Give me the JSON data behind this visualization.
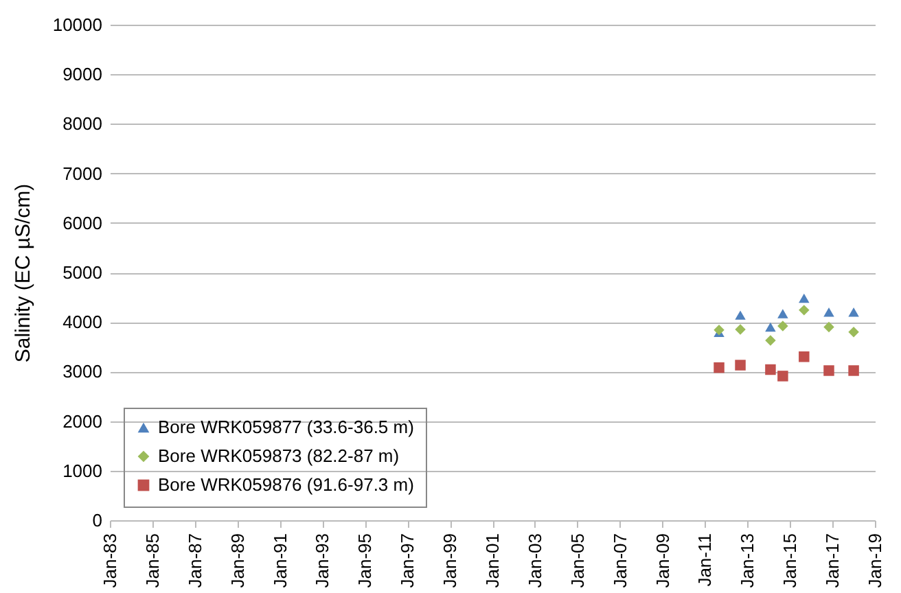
{
  "chart_data": {
    "type": "scatter",
    "ylabel": "Salinity (EC µS/cm)",
    "x": [
      "2011-09",
      "2012-09",
      "2014-02",
      "2014-09",
      "2015-09",
      "2016-11",
      "2018-01"
    ],
    "series": [
      {
        "name": "Bore WRK059877 (33.6-36.5 m)",
        "color": "#4f81bd",
        "marker": "triangle",
        "values": [
          3790,
          4140,
          3900,
          4170,
          4480,
          4200,
          4200
        ]
      },
      {
        "name": "Bore WRK059873 (82.2-87 m)",
        "color": "#9bbb59",
        "marker": "diamond",
        "values": [
          3840,
          3850,
          3630,
          3920,
          4240,
          3900,
          3800
        ]
      },
      {
        "name": "Bore WRK059876 (91.6-97.3 m)",
        "color": "#c0504d",
        "marker": "square",
        "values": [
          3080,
          3130,
          3040,
          2910,
          3300,
          3020,
          3020
        ]
      }
    ],
    "xlim": [
      "1983-01",
      "2019-01"
    ],
    "xticks": [
      {
        "value": "1983-01",
        "label": "Jan-83"
      },
      {
        "value": "1985-01",
        "label": "Jan-85"
      },
      {
        "value": "1987-01",
        "label": "Jan-87"
      },
      {
        "value": "1989-01",
        "label": "Jan-89"
      },
      {
        "value": "1991-01",
        "label": "Jan-91"
      },
      {
        "value": "1993-01",
        "label": "Jan-93"
      },
      {
        "value": "1995-01",
        "label": "Jan-95"
      },
      {
        "value": "1997-01",
        "label": "Jan-97"
      },
      {
        "value": "1999-01",
        "label": "Jan-99"
      },
      {
        "value": "2001-01",
        "label": "Jan-01"
      },
      {
        "value": "2003-01",
        "label": "Jan-03"
      },
      {
        "value": "2005-01",
        "label": "Jan-05"
      },
      {
        "value": "2007-01",
        "label": "Jan-07"
      },
      {
        "value": "2009-01",
        "label": "Jan-09"
      },
      {
        "value": "2011-01",
        "label": "Jan-11"
      },
      {
        "value": "2013-01",
        "label": "Jan-13"
      },
      {
        "value": "2015-01",
        "label": "Jan-15"
      },
      {
        "value": "2017-01",
        "label": "Jan-17"
      },
      {
        "value": "2019-01",
        "label": "Jan-19"
      }
    ],
    "ylim": [
      0,
      10000
    ],
    "yticks": [
      0,
      1000,
      2000,
      3000,
      4000,
      5000,
      6000,
      7000,
      8000,
      9000,
      10000
    ],
    "grid": "y",
    "legend": "bottom left"
  }
}
